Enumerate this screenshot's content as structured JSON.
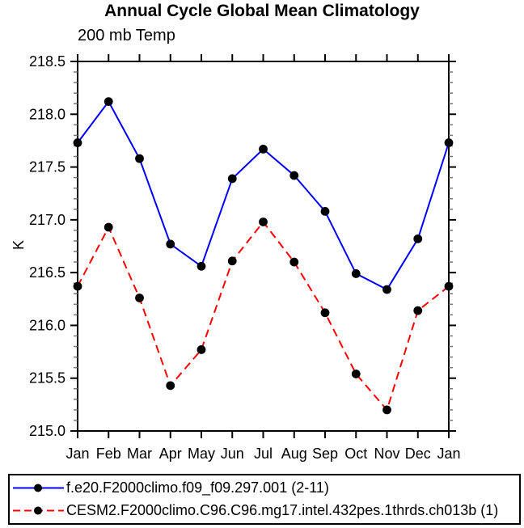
{
  "title": "Annual Cycle Global Mean Climatology",
  "subtitle": "200 mb Temp",
  "chart_data": {
    "type": "line",
    "title": "Annual Cycle Global Mean Climatology",
    "subtitle": "200 mb Temp",
    "xlabel": "",
    "ylabel": "K",
    "categories": [
      "Jan",
      "Feb",
      "Mar",
      "Apr",
      "May",
      "Jun",
      "Jul",
      "Aug",
      "Sep",
      "Oct",
      "Nov",
      "Dec",
      "Jan"
    ],
    "ylim": [
      215.0,
      218.5
    ],
    "yticks": [
      218.5,
      218.0,
      217.5,
      217.0,
      216.5,
      216.0,
      215.5,
      215.0
    ],
    "ytick_labels": [
      "218.5",
      "218.0",
      "217.5",
      "217.0",
      "216.5",
      "216.0",
      "215.5",
      "215.0"
    ],
    "minor_tick_interval": 0.1,
    "grid": false,
    "legend_position": "bottom",
    "marker_color": "#000000",
    "frame_color": "#000000",
    "series": [
      {
        "name": "f.e20.F2000climo.f09_f09.297.001 (2-11)",
        "color": "#0000ff",
        "style": "solid",
        "marker": "filled-circle",
        "values": [
          217.73,
          218.12,
          217.58,
          216.77,
          216.56,
          217.39,
          217.67,
          217.42,
          217.08,
          216.49,
          216.34,
          216.82,
          217.73
        ]
      },
      {
        "name": "CESM2.F2000climo.C96.C96.mg17.intel.432pes.1thrds.ch013b (1)",
        "color": "#ff0000",
        "style": "dashed",
        "marker": "filled-circle",
        "values": [
          216.37,
          216.93,
          216.26,
          215.43,
          215.77,
          216.61,
          216.98,
          216.6,
          216.12,
          215.54,
          215.2,
          216.14,
          216.37
        ]
      }
    ]
  }
}
